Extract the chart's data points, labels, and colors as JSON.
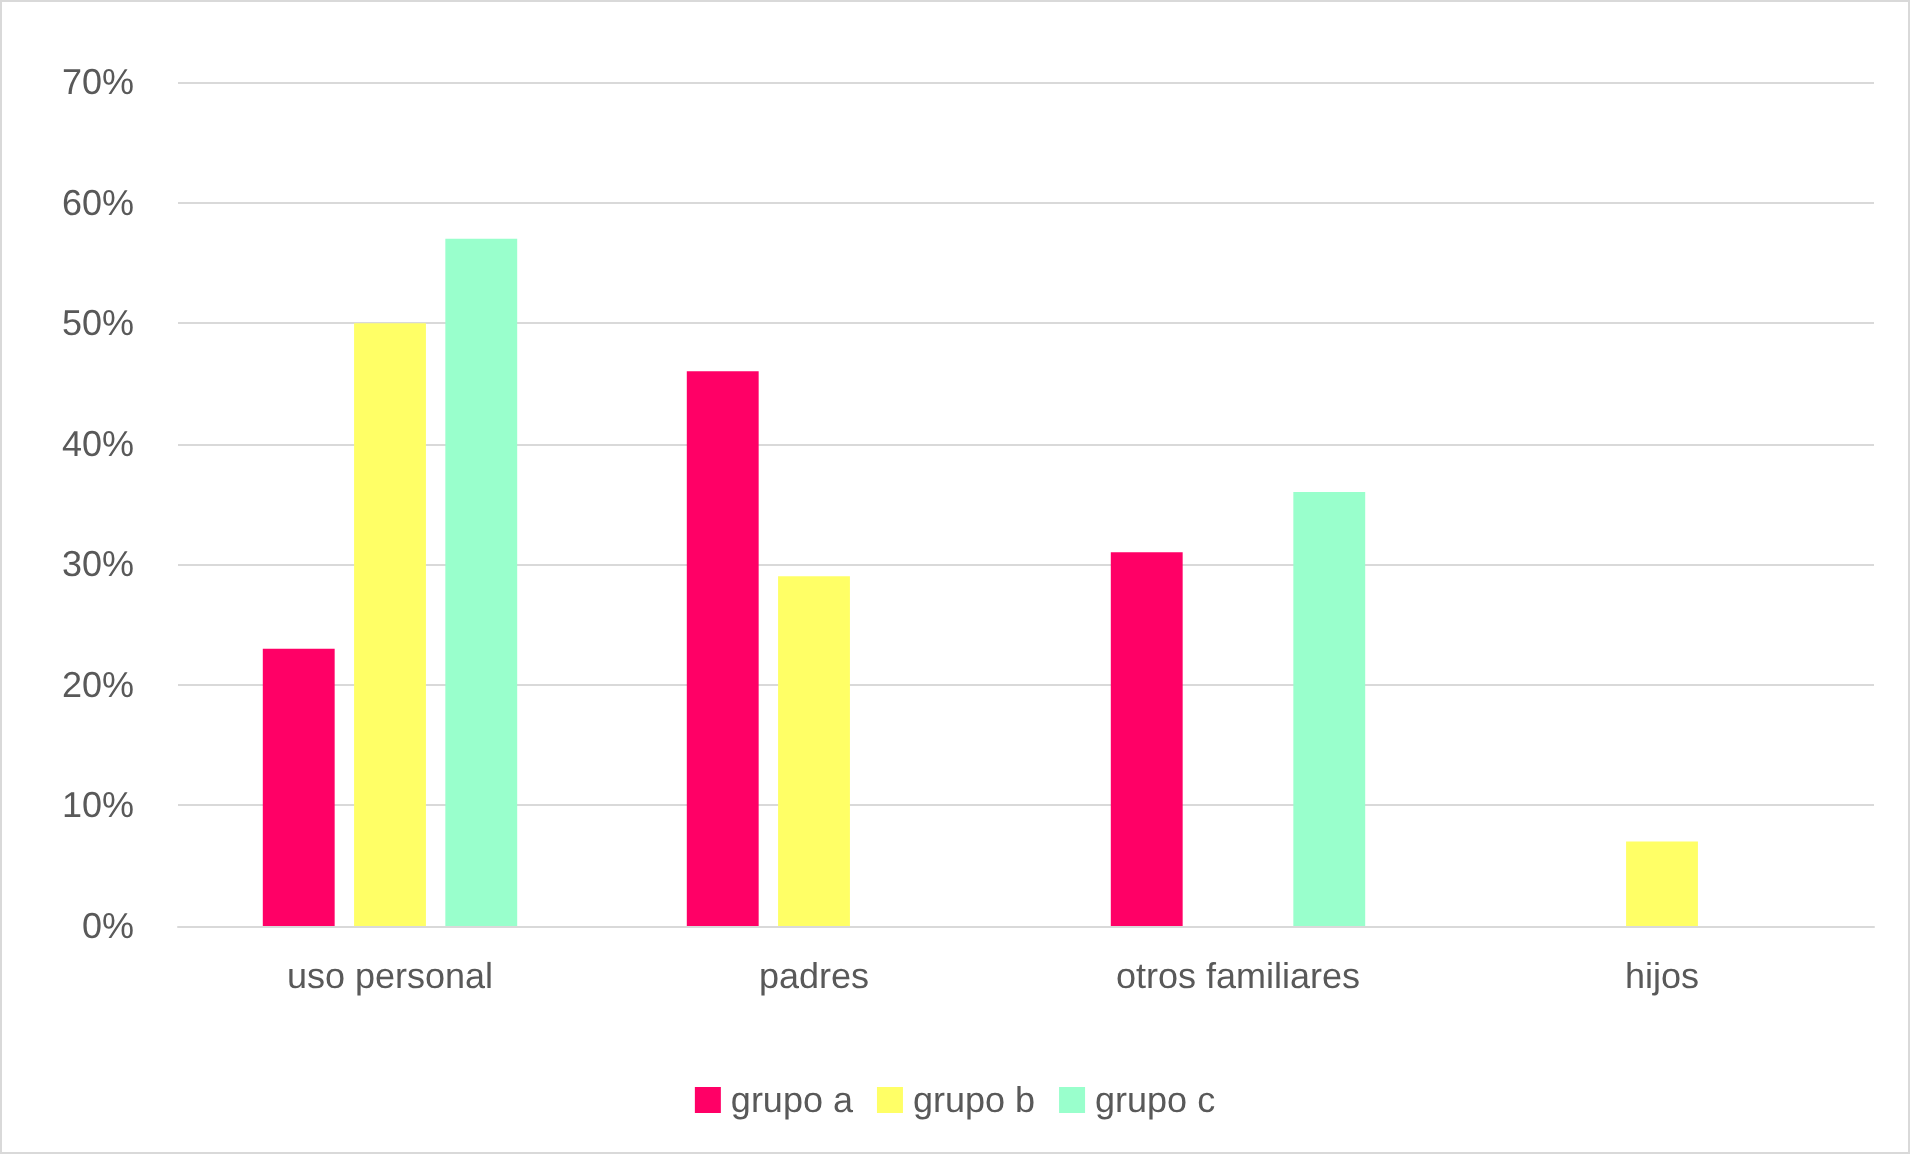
{
  "chart_data": {
    "type": "bar",
    "categories": [
      "uso personal",
      "padres",
      "otros familiares",
      "hijos"
    ],
    "series": [
      {
        "name": "grupo a",
        "color": "#ff0066",
        "values": [
          23,
          46,
          31,
          0
        ]
      },
      {
        "name": "grupo b",
        "color": "#ffff66",
        "values": [
          50,
          29,
          0,
          7
        ]
      },
      {
        "name": "grupo c",
        "color": "#99ffcc",
        "values": [
          57,
          0,
          36,
          0
        ]
      }
    ],
    "ylim": [
      0,
      70
    ],
    "yticks": [
      {
        "value": 0,
        "label": "0%"
      },
      {
        "value": 10,
        "label": "10%"
      },
      {
        "value": 20,
        "label": "20%"
      },
      {
        "value": 30,
        "label": "30%"
      },
      {
        "value": 40,
        "label": "40%"
      },
      {
        "value": 50,
        "label": "50%"
      },
      {
        "value": 60,
        "label": "60%"
      },
      {
        "value": 70,
        "label": "70%"
      }
    ],
    "grid": "y",
    "legend": "bottom"
  }
}
